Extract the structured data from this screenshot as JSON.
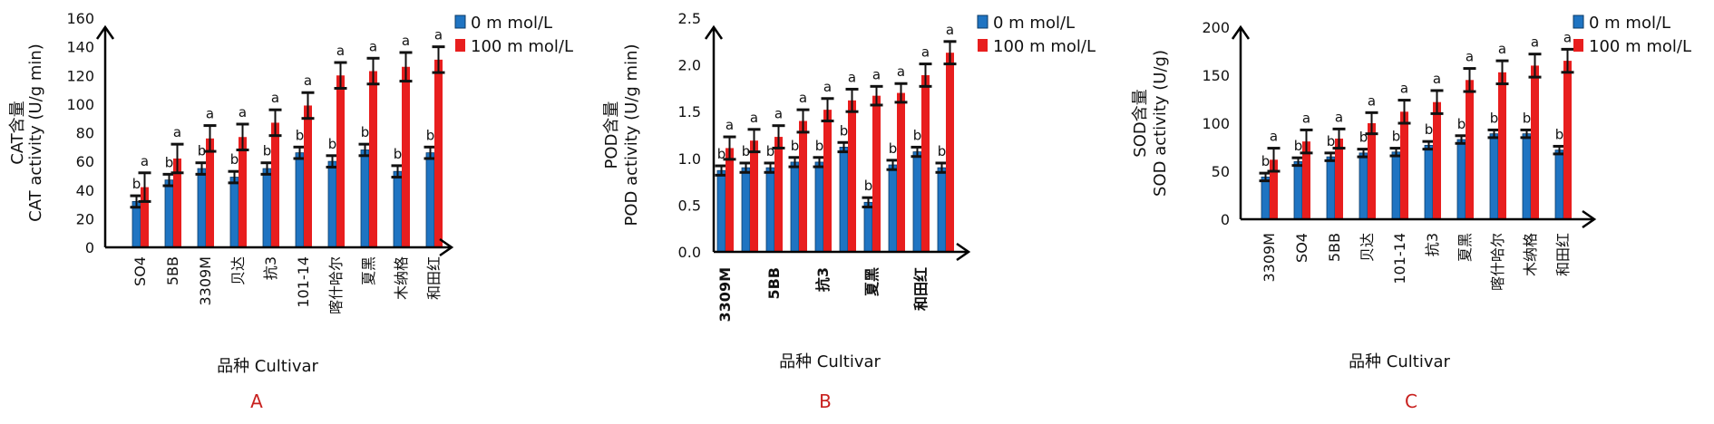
{
  "colors": {
    "control": "#1f74c2",
    "treatment": "#e81e1e",
    "axis": "#000000",
    "panel_letter": "#c8201e",
    "error_bar": "#111111"
  },
  "chart_data": [
    {
      "panel": "A",
      "type": "bar",
      "ylabel_top": "CAT含量",
      "ylabel": "CAT activity (U/g min)",
      "xlabel": "品种 Cultivar",
      "ylim": [
        0,
        160
      ],
      "yticks": [
        "0",
        "20",
        "40",
        "60",
        "80",
        "100",
        "120",
        "140",
        "160"
      ],
      "category_bold": false,
      "categories": [
        "SO4",
        "5BB",
        "3309M",
        "贝达",
        "抗3",
        "101-14",
        "喀什哈尔",
        "夏黑",
        "木纳格",
        "和田红"
      ],
      "series": [
        {
          "name": "0 m mol/L",
          "values": [
            32,
            47,
            55,
            49,
            55,
            66,
            60,
            68,
            53,
            66
          ],
          "errors": [
            4,
            4,
            4,
            4,
            4,
            4,
            4,
            4,
            4,
            4
          ],
          "letters": [
            "b",
            "b",
            "b",
            "b",
            "b",
            "b",
            "b",
            "b",
            "b",
            "b"
          ]
        },
        {
          "name": "100 m mol/L",
          "values": [
            42,
            62,
            76,
            77,
            87,
            99,
            120,
            123,
            126,
            131
          ],
          "errors": [
            10,
            10,
            9,
            9,
            9,
            9,
            9,
            9,
            10,
            9
          ],
          "letters": [
            "a",
            "a",
            "a",
            "a",
            "a",
            "a",
            "a",
            "a",
            "a",
            "a"
          ]
        }
      ]
    },
    {
      "panel": "B",
      "type": "bar",
      "ylabel_top": "POD含量",
      "ylabel": "POD activity (U/g min)",
      "xlabel": "品种 Cultivar",
      "ylim": [
        0,
        2.5
      ],
      "yticks": [
        "0.0",
        "0.5",
        "1.0",
        "1.5",
        "2.0",
        "2.5"
      ],
      "category_bold": true,
      "categories": [
        "3309M",
        "",
        "5BB",
        "",
        "抗3",
        "",
        "夏黑",
        "",
        "和田红",
        ""
      ],
      "series": [
        {
          "name": "0 m mol/L",
          "values": [
            0.87,
            0.9,
            0.9,
            0.96,
            0.96,
            1.12,
            0.53,
            0.93,
            1.07,
            0.9
          ],
          "errors": [
            0.05,
            0.05,
            0.05,
            0.05,
            0.05,
            0.05,
            0.05,
            0.05,
            0.05,
            0.05
          ],
          "letters": [
            "b",
            "b",
            "b",
            "b",
            "b",
            "b",
            "b",
            "b",
            "b",
            "b"
          ]
        },
        {
          "name": "100 m mol/L",
          "values": [
            1.11,
            1.19,
            1.23,
            1.4,
            1.52,
            1.62,
            1.67,
            1.7,
            1.89,
            2.13
          ],
          "errors": [
            0.12,
            0.12,
            0.12,
            0.12,
            0.12,
            0.12,
            0.1,
            0.1,
            0.12,
            0.12
          ],
          "letters": [
            "a",
            "a",
            "a",
            "a",
            "a",
            "a",
            "a",
            "a",
            "a",
            "a"
          ]
        }
      ]
    },
    {
      "panel": "C",
      "type": "bar",
      "ylabel_top": "SOD含量",
      "ylabel": "SOD activity (U/g)",
      "xlabel": "品种  Cultivar",
      "ylim": [
        0,
        200
      ],
      "yticks": [
        "0",
        "50",
        "100",
        "150",
        "200"
      ],
      "category_bold": false,
      "categories": [
        "3309M",
        "SO4",
        "5BB",
        "贝达",
        "101-14",
        "抗3",
        "夏黑",
        "喀什哈尔",
        "木纳格",
        "和田红"
      ],
      "series": [
        {
          "name": "0 m mol/L",
          "values": [
            44,
            60,
            65,
            69,
            70,
            77,
            83,
            89,
            89,
            72
          ],
          "errors": [
            4,
            4,
            4,
            4,
            4,
            4,
            4,
            4,
            4,
            4
          ],
          "letters": [
            "b",
            "b",
            "b",
            "b",
            "b",
            "b",
            "b",
            "b",
            "b",
            "b"
          ]
        },
        {
          "name": "100 m mol/L",
          "values": [
            62,
            81,
            84,
            100,
            112,
            122,
            145,
            153,
            160,
            165
          ],
          "errors": [
            12,
            12,
            10,
            11,
            12,
            12,
            12,
            12,
            12,
            12
          ],
          "letters": [
            "a",
            "a",
            "a",
            "a",
            "a",
            "a",
            "a",
            "a",
            "a",
            "a"
          ]
        }
      ]
    }
  ]
}
